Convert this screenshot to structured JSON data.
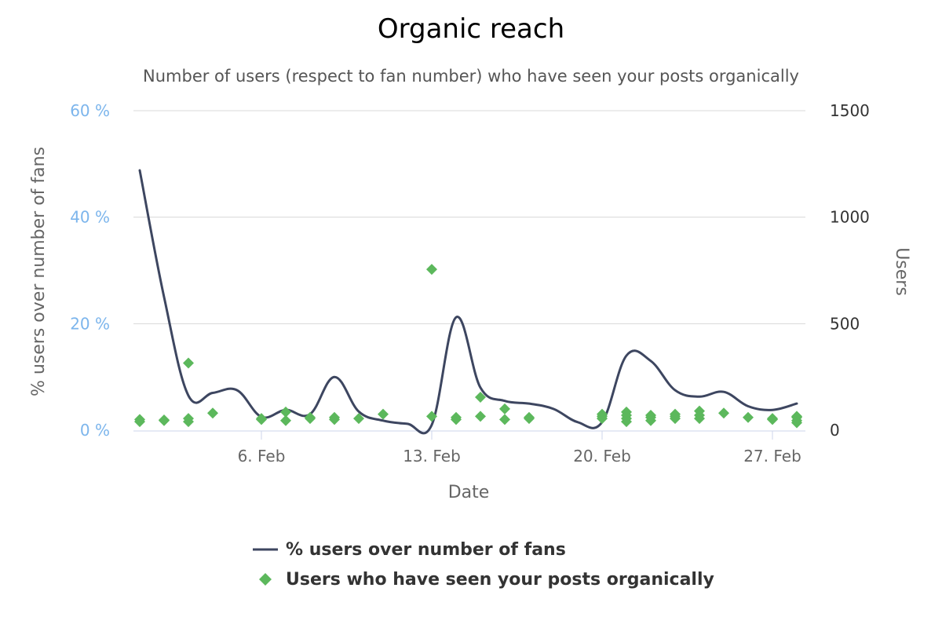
{
  "chart_data": {
    "type": "line",
    "title": "Organic reach",
    "subtitle": "Number of users (respect to fan number) who have seen your posts organically",
    "xlabel": "Date",
    "ylabel_left": "% users over number of fans",
    "ylabel_right": "Users",
    "x_ticks": [
      "6. Feb",
      "13. Feb",
      "20. Feb",
      "27. Feb"
    ],
    "y_left_ticks": [
      "0 %",
      "20 %",
      "40 %",
      "60 %"
    ],
    "y_right_ticks": [
      "0",
      "500",
      "1000",
      "1500"
    ],
    "ylim_left": [
      0,
      60
    ],
    "ylim_right": [
      0,
      1500
    ],
    "grid": true,
    "legend_position": "bottom",
    "colors": {
      "line": "#3d4660",
      "points": "#5cb85c",
      "left_axis": "#7cb5ec"
    },
    "series": [
      {
        "name": "% users over number of fans",
        "type": "spline",
        "axis": "left",
        "points": [
          {
            "x": "1. Feb",
            "y": 48.8
          },
          {
            "x": "2. Feb",
            "y": 25.0
          },
          {
            "x": "3. Feb",
            "y": 6.5
          },
          {
            "x": "4. Feb",
            "y": 7.0
          },
          {
            "x": "5. Feb",
            "y": 7.5
          },
          {
            "x": "6. Feb",
            "y": 2.5
          },
          {
            "x": "7. Feb",
            "y": 3.8
          },
          {
            "x": "8. Feb",
            "y": 3.0
          },
          {
            "x": "9. Feb",
            "y": 10.0
          },
          {
            "x": "10. Feb",
            "y": 3.5
          },
          {
            "x": "11. Feb",
            "y": 1.8
          },
          {
            "x": "12. Feb",
            "y": 1.2
          },
          {
            "x": "13. Feb",
            "y": 1.0
          },
          {
            "x": "14. Feb",
            "y": 21.2
          },
          {
            "x": "15. Feb",
            "y": 8.0
          },
          {
            "x": "16. Feb",
            "y": 5.5
          },
          {
            "x": "17. Feb",
            "y": 5.0
          },
          {
            "x": "18. Feb",
            "y": 4.0
          },
          {
            "x": "19. Feb",
            "y": 1.5
          },
          {
            "x": "20. Feb",
            "y": 1.5
          },
          {
            "x": "21. Feb",
            "y": 14.0
          },
          {
            "x": "22. Feb",
            "y": 13.0
          },
          {
            "x": "23. Feb",
            "y": 7.5
          },
          {
            "x": "24. Feb",
            "y": 6.3
          },
          {
            "x": "25. Feb",
            "y": 7.2
          },
          {
            "x": "26. Feb",
            "y": 4.5
          },
          {
            "x": "27. Feb",
            "y": 3.8
          },
          {
            "x": "28. Feb",
            "y": 5.0
          }
        ]
      },
      {
        "name": "Users who have seen your posts organically",
        "type": "scatter",
        "axis": "right",
        "points": [
          {
            "x": "1. Feb",
            "y": 40
          },
          {
            "x": "1. Feb",
            "y": 50
          },
          {
            "x": "2. Feb",
            "y": 45
          },
          {
            "x": "2. Feb",
            "y": 48
          },
          {
            "x": "3. Feb",
            "y": 40
          },
          {
            "x": "3. Feb",
            "y": 55
          },
          {
            "x": "3. Feb",
            "y": 315
          },
          {
            "x": "4. Feb",
            "y": 80
          },
          {
            "x": "6. Feb",
            "y": 50
          },
          {
            "x": "6. Feb",
            "y": 55
          },
          {
            "x": "7. Feb",
            "y": 45
          },
          {
            "x": "7. Feb",
            "y": 85
          },
          {
            "x": "8. Feb",
            "y": 55
          },
          {
            "x": "8. Feb",
            "y": 60
          },
          {
            "x": "9. Feb",
            "y": 50
          },
          {
            "x": "9. Feb",
            "y": 60
          },
          {
            "x": "10. Feb",
            "y": 55
          },
          {
            "x": "11. Feb",
            "y": 75
          },
          {
            "x": "13. Feb",
            "y": 65
          },
          {
            "x": "13. Feb",
            "y": 755
          },
          {
            "x": "14. Feb",
            "y": 50
          },
          {
            "x": "14. Feb",
            "y": 60
          },
          {
            "x": "15. Feb",
            "y": 65
          },
          {
            "x": "15. Feb",
            "y": 155
          },
          {
            "x": "16. Feb",
            "y": 50
          },
          {
            "x": "16. Feb",
            "y": 100
          },
          {
            "x": "17. Feb",
            "y": 55
          },
          {
            "x": "17. Feb",
            "y": 60
          },
          {
            "x": "20. Feb",
            "y": 55
          },
          {
            "x": "20. Feb",
            "y": 65
          },
          {
            "x": "20. Feb",
            "y": 75
          },
          {
            "x": "21. Feb",
            "y": 40
          },
          {
            "x": "21. Feb",
            "y": 55
          },
          {
            "x": "21. Feb",
            "y": 70
          },
          {
            "x": "21. Feb",
            "y": 85
          },
          {
            "x": "22. Feb",
            "y": 45
          },
          {
            "x": "22. Feb",
            "y": 60
          },
          {
            "x": "22. Feb",
            "y": 70
          },
          {
            "x": "23. Feb",
            "y": 55
          },
          {
            "x": "23. Feb",
            "y": 65
          },
          {
            "x": "23. Feb",
            "y": 75
          },
          {
            "x": "24. Feb",
            "y": 55
          },
          {
            "x": "24. Feb",
            "y": 70
          },
          {
            "x": "24. Feb",
            "y": 90
          },
          {
            "x": "25. Feb",
            "y": 80
          },
          {
            "x": "26. Feb",
            "y": 60
          },
          {
            "x": "27. Feb",
            "y": 50
          },
          {
            "x": "27. Feb",
            "y": 55
          },
          {
            "x": "28. Feb",
            "y": 35
          },
          {
            "x": "28. Feb",
            "y": 45
          },
          {
            "x": "28. Feb",
            "y": 60
          },
          {
            "x": "28. Feb",
            "y": 65
          }
        ]
      }
    ]
  }
}
